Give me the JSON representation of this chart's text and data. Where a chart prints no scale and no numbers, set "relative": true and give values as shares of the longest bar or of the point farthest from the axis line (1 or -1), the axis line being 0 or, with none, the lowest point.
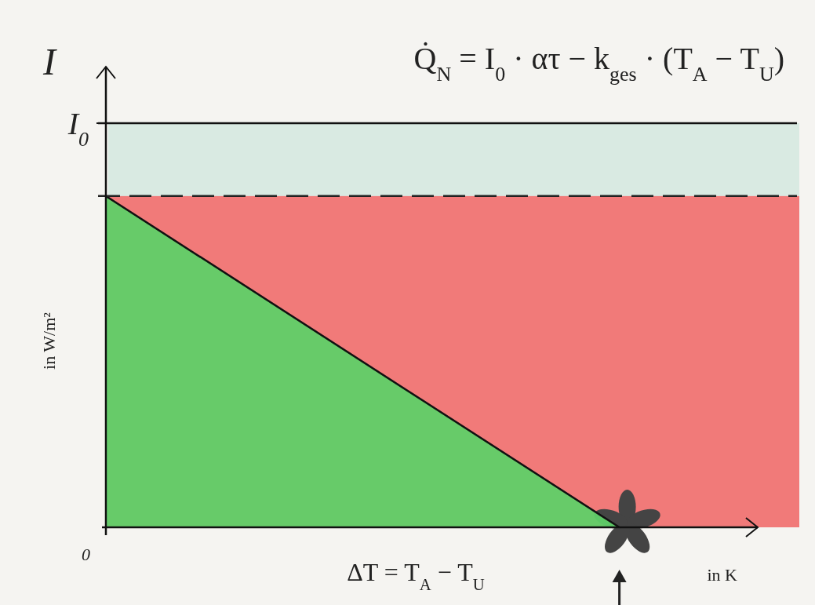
{
  "chart_data": {
    "type": "area",
    "relative": true,
    "xlabel": "ΔT = T$_{A}$ − T$_{U}$",
    "ylabel": "in W/m²",
    "categories": [
      null,
      null
    ],
    "series": [
      {
        "color": "#5fd068",
        "values": [
          1,
          0
        ]
      }
    ],
    "bands": [
      {
        "axis": "y",
        "from": 1,
        "to": 1.22,
        "color": "#d3e8df"
      },
      {
        "axis": "y",
        "from": 0,
        "to": 1,
        "color": "#f06464"
      }
    ],
    "ref_lines": [
      {
        "axis": "y",
        "value": 1.22,
        "color": "#111111",
        "line_style": "solid"
      },
      {
        "axis": "y",
        "value": 1,
        "color": "#222222",
        "line_style": "dashed"
      }
    ],
    "annotations": [
      "I",
      "Q̇$_{N}$ = I$_{0}$ · ατ − k$_{ges}$ · (T$_{A}$ − T$_{U}$)",
      "in K",
      "I$_{0}$",
      "0"
    ]
  }
}
